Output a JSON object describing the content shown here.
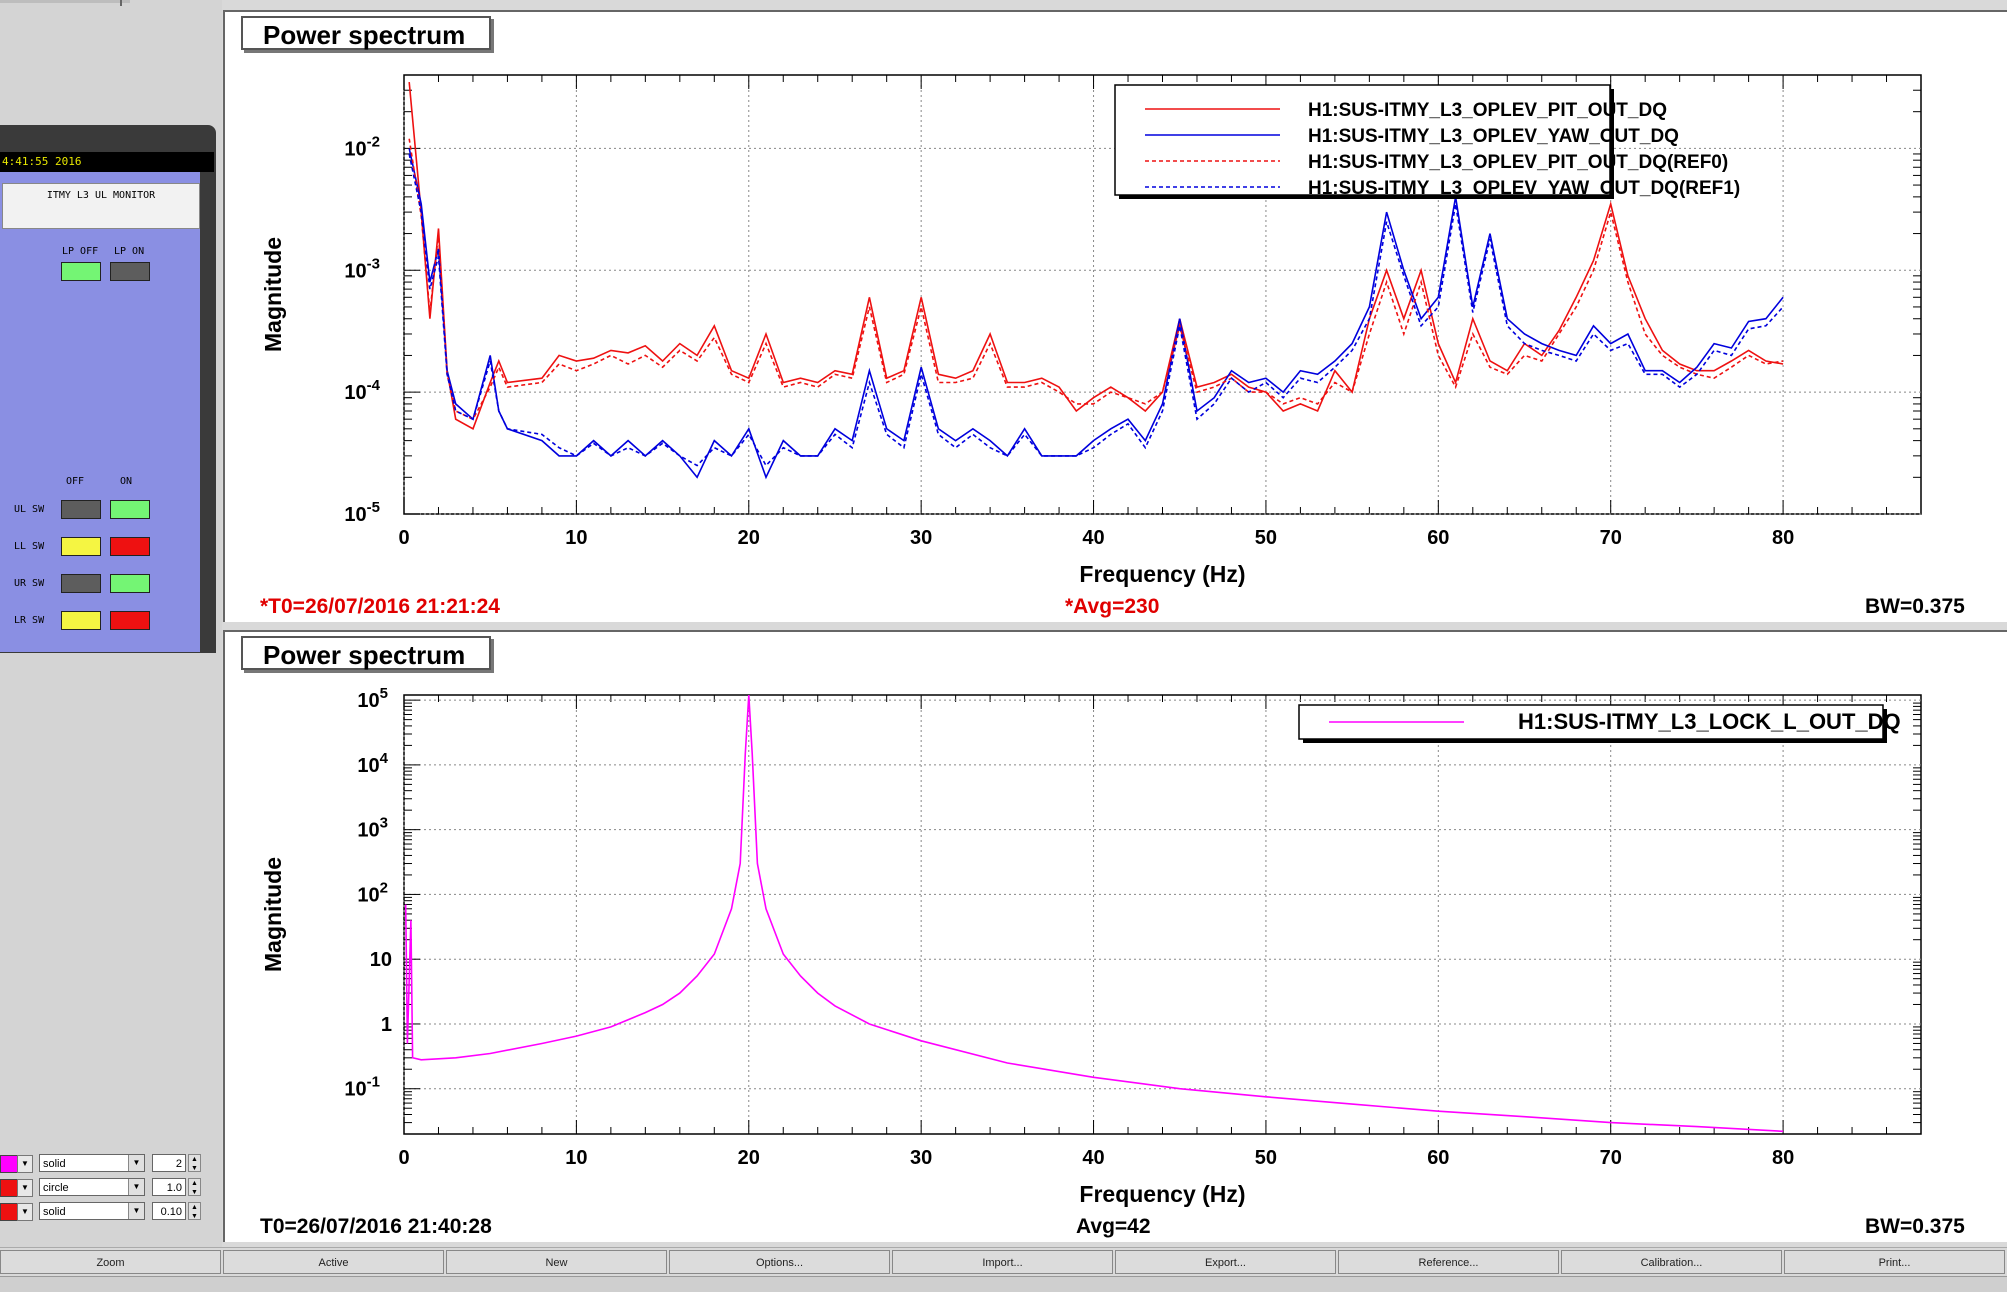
{
  "monitor": {
    "time_text": "4:41:55 2016",
    "title": "ITMY L3 UL MONITOR",
    "lp_off_label": "LP OFF",
    "lp_on_label": "LP ON",
    "off_label": "OFF",
    "on_label": "ON",
    "switches": [
      {
        "label": "UL SW",
        "off": "gray",
        "on": "green"
      },
      {
        "label": "LL SW",
        "off": "yellow",
        "on": "red"
      },
      {
        "label": "UR SW",
        "off": "gray",
        "on": "green"
      },
      {
        "label": "LR SW",
        "off": "yellow",
        "on": "red"
      }
    ]
  },
  "style_controls": [
    {
      "color": "#ff00ff",
      "style": "solid",
      "value": "2"
    },
    {
      "color": "#ee1111",
      "style": "circle",
      "value": "1.0"
    },
    {
      "color": "#ee1111",
      "style": "solid",
      "value": "0.10"
    }
  ],
  "panes": [
    {
      "title": "Power spectrum",
      "t0": "*T0=26/07/2016 21:21:24",
      "avg": "*Avg=230",
      "bw": "BW=0.375",
      "footer_color": "#e00000"
    },
    {
      "title": "Power spectrum",
      "t0": "T0=26/07/2016 21:40:28",
      "avg": "Avg=42",
      "bw": "BW=0.375",
      "footer_color": "#000000"
    }
  ],
  "chart_data": [
    {
      "type": "line",
      "title": "Power spectrum",
      "xlabel": "Frequency (Hz)",
      "ylabel": "Magnitude",
      "xlim": [
        0,
        88
      ],
      "ylim": [
        1e-05,
        0.04
      ],
      "yscale": "log",
      "x_ticks": [
        0,
        10,
        20,
        30,
        40,
        50,
        60,
        70,
        80
      ],
      "y_ticks": [
        {
          "base": "10",
          "exp": "-5"
        },
        {
          "base": "10",
          "exp": "-4"
        },
        {
          "base": "10",
          "exp": "-3"
        },
        {
          "base": "10",
          "exp": "-2"
        }
      ],
      "grid": true,
      "legend": "top-right",
      "series": [
        {
          "name": "H1:SUS-ITMY_L3_OPLEV_PIT_OUT_DQ",
          "color": "#ee1111",
          "dash": "solid",
          "x": [
            0.3,
            1,
            1.5,
            2,
            2.5,
            3,
            4,
            5,
            5.5,
            6,
            8,
            9,
            10,
            11,
            12,
            13,
            14,
            15,
            16,
            17,
            18,
            19,
            20,
            21,
            22,
            23,
            24,
            25,
            26,
            27,
            28,
            29,
            30,
            31,
            32,
            33,
            34,
            35,
            36,
            37,
            38,
            39,
            40,
            41,
            42,
            43,
            44,
            45,
            46,
            47,
            48,
            49,
            50,
            51,
            52,
            53,
            54,
            55,
            56,
            57,
            58,
            59,
            60,
            61,
            62,
            63,
            64,
            65,
            66,
            67,
            68,
            69,
            70,
            71,
            72,
            73,
            74,
            75,
            76,
            77,
            78,
            79,
            80
          ],
          "y": [
            0.035,
            0.003,
            0.0004,
            0.0022,
            0.00015,
            6e-05,
            5e-05,
            0.00012,
            0.00018,
            0.00012,
            0.00013,
            0.0002,
            0.00018,
            0.00019,
            0.00022,
            0.00021,
            0.00024,
            0.00018,
            0.00025,
            0.0002,
            0.00035,
            0.00015,
            0.00013,
            0.0003,
            0.00012,
            0.00013,
            0.00012,
            0.00015,
            0.00014,
            0.0006,
            0.00013,
            0.00015,
            0.0006,
            0.00014,
            0.00013,
            0.00015,
            0.0003,
            0.00012,
            0.00012,
            0.00013,
            0.00011,
            7e-05,
            9e-05,
            0.00011,
            9e-05,
            7e-05,
            0.0001,
            0.0004,
            0.00011,
            0.00012,
            0.00014,
            0.00011,
            0.0001,
            7e-05,
            8e-05,
            7e-05,
            0.00015,
            0.0001,
            0.0004,
            0.001,
            0.0004,
            0.001,
            0.00025,
            0.00012,
            0.0004,
            0.00018,
            0.00015,
            0.00025,
            0.0002,
            0.00032,
            0.0006,
            0.0012,
            0.0035,
            0.0009,
            0.0004,
            0.00022,
            0.00017,
            0.00015,
            0.00015,
            0.00018,
            0.00022,
            0.00018,
            0.00017
          ]
        },
        {
          "name": "H1:SUS-ITMY_L3_OPLEV_YAW_OUT_DQ",
          "color": "#0000dd",
          "dash": "solid",
          "x": [
            0.3,
            1,
            1.5,
            2,
            2.5,
            3,
            4,
            5,
            5.5,
            6,
            8,
            9,
            10,
            11,
            12,
            13,
            14,
            15,
            16,
            17,
            18,
            19,
            20,
            21,
            22,
            23,
            24,
            25,
            26,
            27,
            28,
            29,
            30,
            31,
            32,
            33,
            34,
            35,
            36,
            37,
            38,
            39,
            40,
            41,
            42,
            43,
            44,
            45,
            46,
            47,
            48,
            49,
            50,
            51,
            52,
            53,
            54,
            55,
            56,
            57,
            58,
            59,
            60,
            61,
            62,
            63,
            64,
            65,
            66,
            67,
            68,
            69,
            70,
            71,
            72,
            73,
            74,
            75,
            76,
            77,
            78,
            79,
            80
          ],
          "y": [
            0.01,
            0.0035,
            0.0008,
            0.0015,
            0.00015,
            8e-05,
            6e-05,
            0.0002,
            7e-05,
            5e-05,
            4e-05,
            3e-05,
            3e-05,
            4e-05,
            3e-05,
            4e-05,
            3e-05,
            4e-05,
            3e-05,
            2e-05,
            4e-05,
            3e-05,
            5e-05,
            2e-05,
            4e-05,
            3e-05,
            3e-05,
            5e-05,
            4e-05,
            0.00015,
            5e-05,
            4e-05,
            0.00016,
            5e-05,
            4e-05,
            5e-05,
            4e-05,
            3e-05,
            5e-05,
            3e-05,
            3e-05,
            3e-05,
            4e-05,
            5e-05,
            6e-05,
            4e-05,
            8e-05,
            0.0004,
            7e-05,
            9e-05,
            0.00015,
            0.00012,
            0.00013,
            0.0001,
            0.00015,
            0.00014,
            0.00018,
            0.00025,
            0.0005,
            0.003,
            0.001,
            0.0004,
            0.0006,
            0.004,
            0.0005,
            0.002,
            0.0004,
            0.0003,
            0.00025,
            0.00022,
            0.0002,
            0.00035,
            0.00025,
            0.0003,
            0.00015,
            0.00015,
            0.00012,
            0.00016,
            0.00025,
            0.00023,
            0.00038,
            0.0004,
            0.0006
          ]
        },
        {
          "name": "H1:SUS-ITMY_L3_OPLEV_PIT_OUT_DQ(REF0)",
          "color": "#ee1111",
          "dash": "dashed",
          "x": [
            0.3,
            1,
            1.5,
            2,
            2.5,
            3,
            4,
            5,
            5.5,
            6,
            8,
            9,
            10,
            11,
            12,
            13,
            14,
            15,
            16,
            17,
            18,
            19,
            20,
            21,
            22,
            23,
            24,
            25,
            26,
            27,
            28,
            29,
            30,
            31,
            32,
            33,
            34,
            35,
            36,
            37,
            38,
            39,
            40,
            41,
            42,
            43,
            44,
            45,
            46,
            47,
            48,
            49,
            50,
            51,
            52,
            53,
            54,
            55,
            56,
            57,
            58,
            59,
            60,
            61,
            62,
            63,
            64,
            65,
            66,
            67,
            68,
            69,
            70,
            71,
            72,
            73,
            74,
            75,
            76,
            77,
            78,
            79,
            80
          ],
          "y": [
            0.012,
            0.0028,
            0.00045,
            0.002,
            0.00014,
            7e-05,
            6e-05,
            0.00011,
            0.00016,
            0.00011,
            0.00012,
            0.00017,
            0.00015,
            0.00017,
            0.0002,
            0.00017,
            0.0002,
            0.00016,
            0.00022,
            0.00018,
            0.00028,
            0.00014,
            0.00012,
            0.00025,
            0.00011,
            0.00012,
            0.00011,
            0.00014,
            0.00013,
            0.0005,
            0.00012,
            0.00014,
            0.0005,
            0.00012,
            0.00012,
            0.00013,
            0.00025,
            0.00011,
            0.00011,
            0.00012,
            0.0001,
            8e-05,
            8e-05,
            0.0001,
            9e-05,
            8e-05,
            0.0001,
            0.00035,
            0.0001,
            0.00011,
            0.00013,
            0.0001,
            0.0001,
            8e-05,
            9e-05,
            8e-05,
            0.00012,
            0.0001,
            0.0003,
            0.0008,
            0.0003,
            0.0008,
            0.0002,
            0.00011,
            0.0003,
            0.00016,
            0.00014,
            0.0002,
            0.00018,
            0.0003,
            0.0005,
            0.001,
            0.003,
            0.0008,
            0.0003,
            0.0002,
            0.00016,
            0.00014,
            0.00013,
            0.00016,
            0.0002,
            0.00017,
            0.00018
          ]
        },
        {
          "name": "H1:SUS-ITMY_L3_OPLEV_YAW_OUT_DQ(REF1)",
          "color": "#0000dd",
          "dash": "dashed",
          "x": [
            0.3,
            1,
            1.5,
            2,
            2.5,
            3,
            4,
            5,
            5.5,
            6,
            8,
            9,
            10,
            11,
            12,
            13,
            14,
            15,
            16,
            17,
            18,
            19,
            20,
            21,
            22,
            23,
            24,
            25,
            26,
            27,
            28,
            29,
            30,
            31,
            32,
            33,
            34,
            35,
            36,
            37,
            38,
            39,
            40,
            41,
            42,
            43,
            44,
            45,
            46,
            47,
            48,
            49,
            50,
            51,
            52,
            53,
            54,
            55,
            56,
            57,
            58,
            59,
            60,
            61,
            62,
            63,
            64,
            65,
            66,
            67,
            68,
            69,
            70,
            71,
            72,
            73,
            74,
            75,
            76,
            77,
            78,
            79,
            80
          ],
          "y": [
            0.009,
            0.003,
            0.0007,
            0.0013,
            0.00014,
            7e-05,
            6e-05,
            0.00018,
            7e-05,
            5e-05,
            4.5e-05,
            3.5e-05,
            3e-05,
            3.8e-05,
            3e-05,
            3.5e-05,
            3e-05,
            3.8e-05,
            3e-05,
            2.5e-05,
            3.5e-05,
            3e-05,
            4.5e-05,
            2.5e-05,
            3.5e-05,
            3e-05,
            3e-05,
            4.5e-05,
            3.5e-05,
            0.00012,
            4.5e-05,
            3.5e-05,
            0.00014,
            4.5e-05,
            3.5e-05,
            4.5e-05,
            3.5e-05,
            3e-05,
            4.5e-05,
            3e-05,
            3e-05,
            3e-05,
            3.5e-05,
            4.5e-05,
            5.5e-05,
            3.5e-05,
            7e-05,
            0.00035,
            6e-05,
            8e-05,
            0.00013,
            0.0001,
            0.00012,
            9e-05,
            0.00013,
            0.00012,
            0.00016,
            0.00022,
            0.0004,
            0.0025,
            0.0009,
            0.00035,
            0.0005,
            0.0035,
            0.00045,
            0.0018,
            0.00035,
            0.00025,
            0.00022,
            0.0002,
            0.00018,
            0.0003,
            0.00022,
            0.00025,
            0.00014,
            0.00014,
            0.00011,
            0.00014,
            0.00022,
            0.0002,
            0.00033,
            0.00035,
            0.0005
          ]
        }
      ]
    },
    {
      "type": "line",
      "title": "Power spectrum",
      "xlabel": "Frequency (Hz)",
      "ylabel": "Magnitude",
      "xlim": [
        0,
        88
      ],
      "ylim": [
        0.02,
        120000
      ],
      "yscale": "log",
      "x_ticks": [
        0,
        10,
        20,
        30,
        40,
        50,
        60,
        70,
        80
      ],
      "y_ticks": [
        {
          "base": "10",
          "exp": "-1"
        },
        {
          "base": "1",
          "exp": ""
        },
        {
          "base": "10",
          "exp": ""
        },
        {
          "base": "10",
          "exp": "2"
        },
        {
          "base": "10",
          "exp": "3"
        },
        {
          "base": "10",
          "exp": "4"
        },
        {
          "base": "10",
          "exp": "5"
        }
      ],
      "grid": true,
      "legend": "top-right",
      "series": [
        {
          "name": "H1:SUS-ITMY_L3_LOCK_L_OUT_DQ",
          "color": "#ff00ff",
          "dash": "solid",
          "x": [
            0.1,
            0.2,
            0.4,
            0.5,
            1,
            3,
            5,
            8,
            10,
            12,
            14,
            15,
            16,
            17,
            18,
            19,
            19.5,
            19.8,
            20,
            20.2,
            20.5,
            21,
            22,
            23,
            24,
            25,
            27,
            30,
            35,
            40,
            45,
            50,
            55,
            60,
            65,
            70,
            75,
            80
          ],
          "y": [
            70,
            0.5,
            40,
            0.3,
            0.28,
            0.3,
            0.35,
            0.5,
            0.65,
            0.9,
            1.5,
            2,
            3,
            5.5,
            12,
            60,
            300,
            15000,
            120000,
            15000,
            300,
            60,
            12,
            5.5,
            3,
            1.9,
            1,
            0.55,
            0.25,
            0.15,
            0.1,
            0.075,
            0.058,
            0.045,
            0.037,
            0.03,
            0.026,
            0.022
          ]
        }
      ]
    }
  ],
  "buttons": [
    "Zoom",
    "Active",
    "New",
    "Options...",
    "Import...",
    "Export...",
    "Reference...",
    "Calibration...",
    "Print..."
  ]
}
